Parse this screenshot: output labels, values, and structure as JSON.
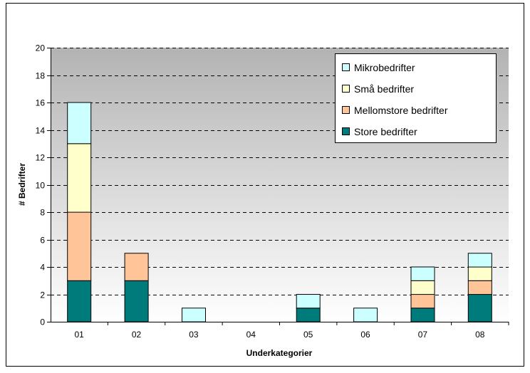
{
  "chart_data": {
    "type": "bar",
    "stacked": true,
    "title": "",
    "xlabel": "Underkategorier",
    "ylabel": "# Bedrifter",
    "ylim": [
      0,
      20
    ],
    "ytick_step": 2,
    "grid": "horizontal dashed",
    "legend_position": "top-right",
    "categories": [
      "01",
      "02",
      "03",
      "04",
      "05",
      "06",
      "07",
      "08"
    ],
    "series": [
      {
        "name": "Store bedrifter",
        "color": "#007b7b",
        "values": [
          3,
          3,
          0,
          0,
          1,
          0,
          1,
          2
        ]
      },
      {
        "name": "Mellomstore bedrifter",
        "color": "#ffc598",
        "values": [
          5,
          2,
          0,
          0,
          0,
          0,
          1,
          1
        ]
      },
      {
        "name": "Små bedrifter",
        "color": "#ffffcc",
        "values": [
          5,
          0,
          0,
          0,
          0,
          0,
          1,
          1
        ]
      },
      {
        "name": "Mikrobedrifter",
        "color": "#ccffff",
        "values": [
          3,
          0,
          1,
          0,
          1,
          1,
          1,
          1
        ]
      }
    ],
    "legend_order": [
      "Mikrobedrifter",
      "Små bedrifter",
      "Mellomstore bedrifter",
      "Store bedrifter"
    ]
  }
}
